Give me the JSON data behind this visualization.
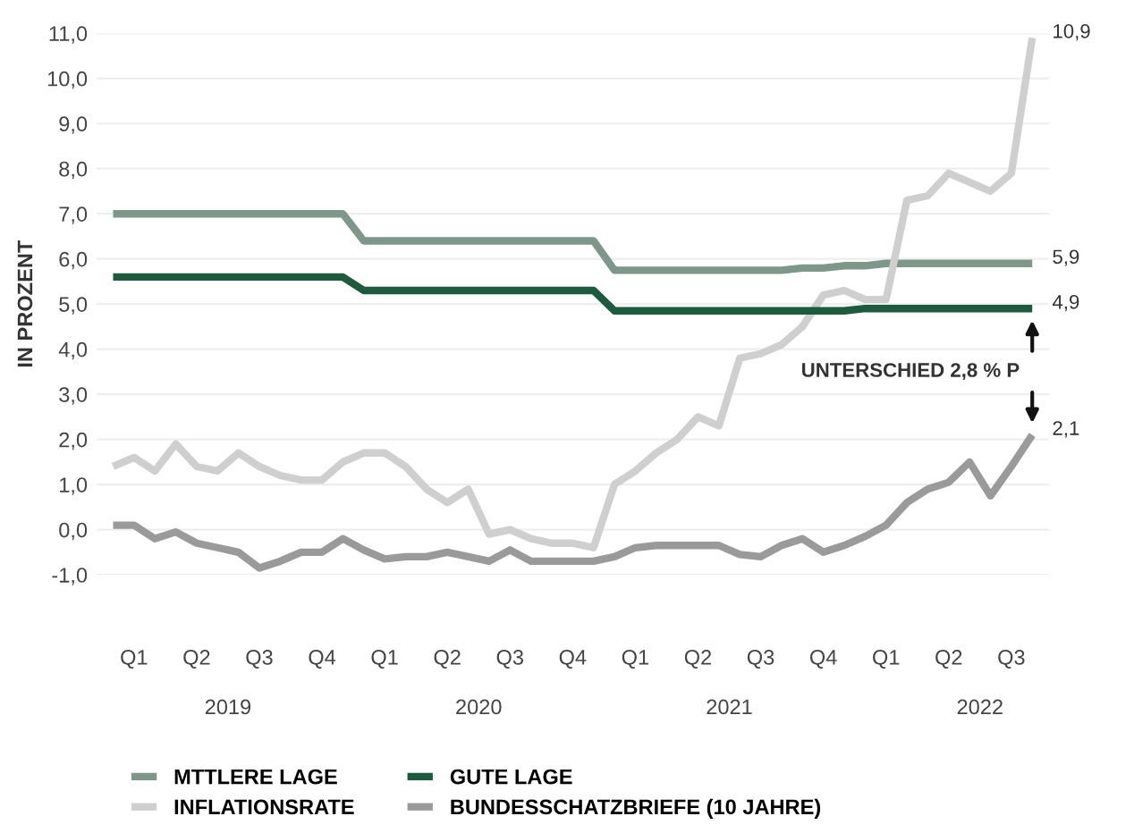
{
  "chart_data": {
    "type": "line",
    "ylabel": "IN PROZENT",
    "categories": [
      null,
      "Q1",
      null,
      null,
      "Q2",
      null,
      null,
      "Q3",
      null,
      null,
      "Q4",
      null,
      null,
      "Q1",
      null,
      null,
      "Q2",
      null,
      null,
      "Q3",
      null,
      null,
      "Q4",
      null,
      null,
      "Q1",
      null,
      null,
      "Q2",
      null,
      null,
      "Q3",
      null,
      null,
      "Q4",
      null,
      null,
      "Q1",
      null,
      null,
      "Q2",
      null,
      null,
      "Q3",
      null
    ],
    "series": [
      {
        "name": "MTTLERE LAGE",
        "color": "#7d978a",
        "values": [
          7.0,
          7.0,
          7.0,
          7.0,
          7.0,
          7.0,
          7.0,
          7.0,
          7.0,
          7.0,
          7.0,
          7.0,
          6.4,
          6.4,
          6.4,
          6.4,
          6.4,
          6.4,
          6.4,
          6.4,
          6.4,
          6.4,
          6.4,
          6.4,
          5.75,
          5.75,
          5.75,
          5.75,
          5.75,
          5.75,
          5.75,
          5.75,
          5.75,
          5.8,
          5.8,
          5.85,
          5.85,
          5.9,
          5.9,
          5.9,
          5.9,
          5.9,
          5.9,
          5.9,
          5.9
        ],
        "value_labels": [
          null,
          null,
          null,
          null,
          null,
          null,
          null,
          null,
          null,
          null,
          null,
          null,
          null,
          null,
          null,
          null,
          null,
          null,
          null,
          null,
          null,
          null,
          null,
          null,
          null,
          null,
          null,
          null,
          null,
          null,
          null,
          null,
          null,
          null,
          null,
          null,
          null,
          null,
          null,
          null,
          null,
          null,
          null,
          null,
          "5,9"
        ]
      },
      {
        "name": "INFLATIONSRATE",
        "color": "#cfcfcf",
        "values": [
          1.4,
          1.6,
          1.3,
          1.9,
          1.4,
          1.3,
          1.7,
          1.4,
          1.2,
          1.1,
          1.1,
          1.5,
          1.7,
          1.7,
          1.4,
          0.9,
          0.6,
          0.9,
          -0.1,
          0.0,
          -0.2,
          -0.3,
          -0.3,
          -0.4,
          1.0,
          1.3,
          1.7,
          2.0,
          2.5,
          2.3,
          3.8,
          3.9,
          4.1,
          4.5,
          5.2,
          5.3,
          5.1,
          5.1,
          7.3,
          7.4,
          7.9,
          7.7,
          7.5,
          7.9,
          10.9
        ],
        "value_labels": [
          null,
          null,
          null,
          null,
          null,
          null,
          null,
          null,
          null,
          null,
          null,
          null,
          null,
          null,
          null,
          null,
          null,
          null,
          null,
          null,
          null,
          null,
          null,
          null,
          null,
          null,
          null,
          null,
          null,
          null,
          null,
          null,
          null,
          null,
          null,
          null,
          null,
          null,
          null,
          null,
          null,
          null,
          null,
          null,
          "10,9"
        ]
      },
      {
        "name": "GUTE LAGE",
        "color": "#1d5a3e",
        "values": [
          5.6,
          5.6,
          5.6,
          5.6,
          5.6,
          5.6,
          5.6,
          5.6,
          5.6,
          5.6,
          5.6,
          5.6,
          5.3,
          5.3,
          5.3,
          5.3,
          5.3,
          5.3,
          5.3,
          5.3,
          5.3,
          5.3,
          5.3,
          5.3,
          4.85,
          4.85,
          4.85,
          4.85,
          4.85,
          4.85,
          4.85,
          4.85,
          4.85,
          4.85,
          4.85,
          4.85,
          4.9,
          4.9,
          4.9,
          4.9,
          4.9,
          4.9,
          4.9,
          4.9,
          4.9
        ],
        "value_labels": [
          null,
          null,
          null,
          null,
          null,
          null,
          null,
          null,
          null,
          null,
          null,
          null,
          null,
          null,
          null,
          null,
          null,
          null,
          null,
          null,
          null,
          null,
          null,
          null,
          null,
          null,
          null,
          null,
          null,
          null,
          null,
          null,
          null,
          null,
          null,
          null,
          null,
          null,
          null,
          null,
          null,
          null,
          null,
          null,
          "4,9"
        ]
      },
      {
        "name": "BUNDESSCHATZBRIEFE (10 JAHRE)",
        "color": "#9a9a9a",
        "values": [
          0.1,
          0.1,
          -0.2,
          -0.05,
          -0.3,
          -0.4,
          -0.5,
          -0.85,
          -0.7,
          -0.5,
          -0.5,
          -0.2,
          -0.45,
          -0.65,
          -0.6,
          -0.6,
          -0.5,
          -0.6,
          -0.7,
          -0.45,
          -0.7,
          -0.7,
          -0.7,
          -0.7,
          -0.6,
          -0.4,
          -0.35,
          -0.35,
          -0.35,
          -0.35,
          -0.55,
          -0.6,
          -0.35,
          -0.2,
          -0.5,
          -0.35,
          -0.15,
          0.1,
          0.6,
          0.9,
          1.05,
          1.5,
          0.75,
          1.4,
          2.1
        ],
        "value_labels": [
          null,
          null,
          null,
          null,
          null,
          null,
          null,
          null,
          null,
          null,
          null,
          null,
          null,
          null,
          null,
          null,
          null,
          null,
          null,
          null,
          null,
          null,
          null,
          null,
          null,
          null,
          null,
          null,
          null,
          null,
          null,
          null,
          null,
          null,
          null,
          null,
          null,
          null,
          null,
          null,
          null,
          null,
          null,
          null,
          "2,1"
        ]
      }
    ],
    "ylim": [
      -1,
      11
    ],
    "yticks": [
      {
        "value": -1,
        "label": "-1,0"
      },
      {
        "value": 0,
        "label": "0,0"
      },
      {
        "value": 1,
        "label": "1,0"
      },
      {
        "value": 2,
        "label": "2,0"
      },
      {
        "value": 3,
        "label": "3,0"
      },
      {
        "value": 4,
        "label": "4,0"
      },
      {
        "value": 5,
        "label": "5,0"
      },
      {
        "value": 6,
        "label": "6,0"
      },
      {
        "value": 7,
        "label": "7,0"
      },
      {
        "value": 8,
        "label": "8,0"
      },
      {
        "value": 9,
        "label": "9,0"
      },
      {
        "value": 10,
        "label": "10,0"
      },
      {
        "value": 11,
        "label": "11,0"
      }
    ],
    "annotations": [
      "2019",
      "2020",
      "2021",
      "2022",
      "UNTERSCHIED 2,8 % P"
    ],
    "grid": "y",
    "legend": "bottom",
    "marker": "none",
    "line_style": "solid"
  }
}
